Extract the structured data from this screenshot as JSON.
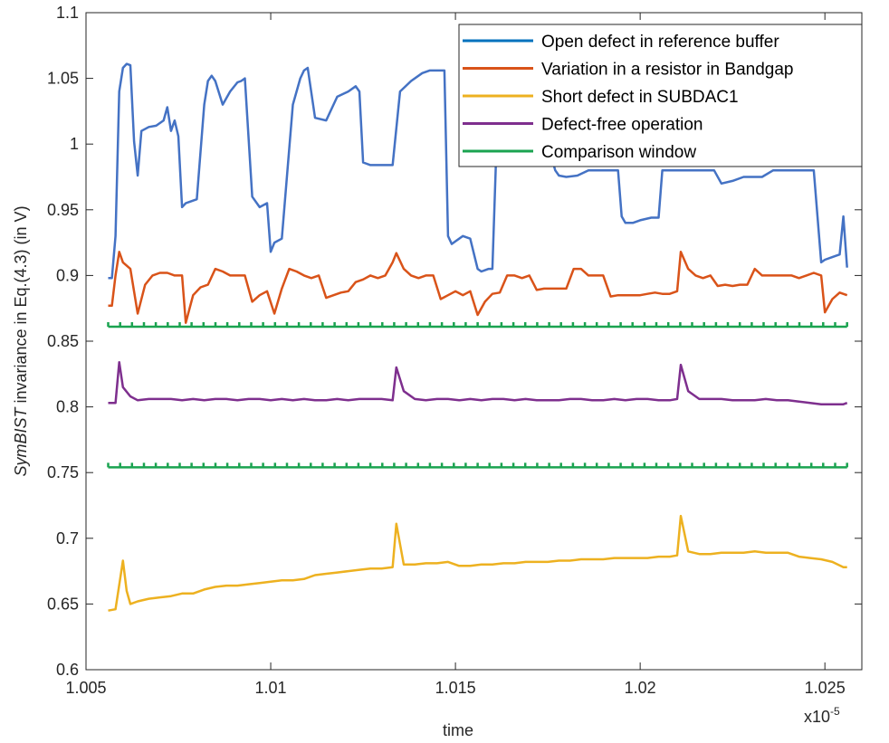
{
  "chart_data": {
    "type": "line",
    "title": "",
    "xlabel": "time",
    "ylabel_italic": "SymBIST",
    "ylabel_rest": " invariance in Eq.(4.3) (in V)",
    "x_exponent_label": "x10",
    "x_exponent_sup": "-5",
    "xlim": [
      1.005,
      1.026
    ],
    "ylim": [
      0.6,
      1.1
    ],
    "xticks": [
      1.005,
      1.01,
      1.015,
      1.02,
      1.025
    ],
    "xtick_labels": [
      "1.005",
      "1.01",
      "1.015",
      "1.02",
      "1.025"
    ],
    "yticks": [
      0.6,
      0.65,
      0.7,
      0.75,
      0.8,
      0.85,
      0.9,
      0.95,
      1.0,
      1.05,
      1.1
    ],
    "ytick_labels": [
      "0.6",
      "0.65",
      "0.7",
      "0.75",
      "0.8",
      "0.85",
      "0.9",
      "0.95",
      "1",
      "1.05",
      "1.1"
    ],
    "legend_position": "top-right",
    "series": [
      {
        "name": "Open defect in reference buffer",
        "color": "#4472C4",
        "legend_color": "#0072BD",
        "x": [
          1.0056,
          1.0057,
          1.0058,
          1.0059,
          1.006,
          1.0061,
          1.0062,
          1.0063,
          1.0064,
          1.0065,
          1.0067,
          1.0069,
          1.0071,
          1.0072,
          1.0073,
          1.0074,
          1.0075,
          1.0076,
          1.0077,
          1.0078,
          1.008,
          1.0082,
          1.0083,
          1.0084,
          1.0085,
          1.0087,
          1.0089,
          1.0091,
          1.0092,
          1.0093,
          1.0095,
          1.0097,
          1.0099,
          1.01,
          1.0101,
          1.0103,
          1.0106,
          1.0108,
          1.0109,
          1.011,
          1.0112,
          1.0115,
          1.0118,
          1.0121,
          1.0123,
          1.0124,
          1.0125,
          1.0127,
          1.013,
          1.0133,
          1.0135,
          1.0138,
          1.0141,
          1.0143,
          1.0145,
          1.0147,
          1.0148,
          1.0149,
          1.015,
          1.0152,
          1.0154,
          1.0156,
          1.0157,
          1.0158,
          1.0159,
          1.016,
          1.0161,
          1.0163,
          1.0166,
          1.0169,
          1.0172,
          1.0175,
          1.0177,
          1.0178,
          1.018,
          1.0183,
          1.0186,
          1.0188,
          1.019,
          1.0192,
          1.0194,
          1.0195,
          1.0196,
          1.0198,
          1.02,
          1.0203,
          1.0205,
          1.0206,
          1.0207,
          1.0209,
          1.0212,
          1.0215,
          1.0218,
          1.022,
          1.0222,
          1.0225,
          1.0228,
          1.023,
          1.0233,
          1.0236,
          1.0239,
          1.0242,
          1.0245,
          1.0247,
          1.0249,
          1.025,
          1.0252,
          1.0254,
          1.0255,
          1.0256
        ],
        "y": [
          0.898,
          0.898,
          0.93,
          1.04,
          1.058,
          1.061,
          1.06,
          1.002,
          0.976,
          1.01,
          1.013,
          1.014,
          1.018,
          1.028,
          1.01,
          1.018,
          1.006,
          0.952,
          0.955,
          0.956,
          0.958,
          1.03,
          1.048,
          1.052,
          1.048,
          1.03,
          1.04,
          1.047,
          1.048,
          1.05,
          0.96,
          0.952,
          0.955,
          0.918,
          0.925,
          0.928,
          1.03,
          1.05,
          1.056,
          1.058,
          1.02,
          1.018,
          1.036,
          1.04,
          1.044,
          1.04,
          0.986,
          0.984,
          0.984,
          0.984,
          1.04,
          1.048,
          1.054,
          1.056,
          1.056,
          1.056,
          0.93,
          0.924,
          0.926,
          0.93,
          0.928,
          0.905,
          0.903,
          0.904,
          0.905,
          0.905,
          0.99,
          1.0,
          1.0,
          1.0,
          1.0,
          1.0,
          0.98,
          0.976,
          0.975,
          0.976,
          0.98,
          0.98,
          0.98,
          0.98,
          0.98,
          0.945,
          0.94,
          0.94,
          0.942,
          0.944,
          0.944,
          0.98,
          0.98,
          0.98,
          0.98,
          0.98,
          0.98,
          0.98,
          0.97,
          0.972,
          0.975,
          0.975,
          0.975,
          0.98,
          0.98,
          0.98,
          0.98,
          0.98,
          0.91,
          0.912,
          0.914,
          0.916,
          0.945,
          0.906
        ]
      },
      {
        "name": "Variation in a resistor in Bandgap",
        "color": "#D95319",
        "x": [
          1.0056,
          1.0057,
          1.0058,
          1.0059,
          1.006,
          1.0062,
          1.0064,
          1.0066,
          1.0068,
          1.007,
          1.0072,
          1.0074,
          1.0076,
          1.0077,
          1.0079,
          1.0081,
          1.0083,
          1.0085,
          1.0087,
          1.0089,
          1.0091,
          1.0093,
          1.0095,
          1.0097,
          1.0099,
          1.0101,
          1.0103,
          1.0105,
          1.0107,
          1.0109,
          1.0111,
          1.0113,
          1.0115,
          1.0117,
          1.0119,
          1.0121,
          1.0123,
          1.0125,
          1.0127,
          1.0129,
          1.0131,
          1.0133,
          1.0134,
          1.0136,
          1.0138,
          1.014,
          1.0142,
          1.0144,
          1.0146,
          1.0148,
          1.015,
          1.0152,
          1.0154,
          1.0156,
          1.0158,
          1.016,
          1.0162,
          1.0164,
          1.0166,
          1.0168,
          1.017,
          1.0172,
          1.0174,
          1.0176,
          1.0178,
          1.018,
          1.0182,
          1.0184,
          1.0186,
          1.0188,
          1.019,
          1.0192,
          1.0194,
          1.0196,
          1.0198,
          1.02,
          1.0202,
          1.0204,
          1.0206,
          1.0208,
          1.021,
          1.0211,
          1.0213,
          1.0215,
          1.0217,
          1.0219,
          1.0221,
          1.0223,
          1.0225,
          1.0227,
          1.0229,
          1.0231,
          1.0233,
          1.0235,
          1.0237,
          1.0239,
          1.0241,
          1.0243,
          1.0245,
          1.0247,
          1.0249,
          1.025,
          1.0252,
          1.0254,
          1.0256
        ],
        "y": [
          0.877,
          0.877,
          0.9,
          0.918,
          0.91,
          0.905,
          0.871,
          0.893,
          0.9,
          0.902,
          0.902,
          0.9,
          0.9,
          0.864,
          0.885,
          0.891,
          0.893,
          0.905,
          0.903,
          0.9,
          0.9,
          0.9,
          0.88,
          0.885,
          0.888,
          0.871,
          0.89,
          0.905,
          0.903,
          0.9,
          0.898,
          0.9,
          0.883,
          0.885,
          0.887,
          0.888,
          0.895,
          0.897,
          0.9,
          0.898,
          0.9,
          0.91,
          0.917,
          0.905,
          0.9,
          0.898,
          0.9,
          0.9,
          0.882,
          0.885,
          0.888,
          0.885,
          0.888,
          0.87,
          0.88,
          0.886,
          0.887,
          0.9,
          0.9,
          0.898,
          0.9,
          0.889,
          0.89,
          0.89,
          0.89,
          0.89,
          0.905,
          0.905,
          0.9,
          0.9,
          0.9,
          0.884,
          0.885,
          0.885,
          0.885,
          0.885,
          0.886,
          0.887,
          0.886,
          0.886,
          0.888,
          0.918,
          0.905,
          0.9,
          0.898,
          0.9,
          0.892,
          0.893,
          0.892,
          0.893,
          0.893,
          0.905,
          0.9,
          0.9,
          0.9,
          0.9,
          0.9,
          0.898,
          0.9,
          0.902,
          0.9,
          0.872,
          0.882,
          0.887,
          0.885
        ]
      },
      {
        "name": "Short defect in SUBDAC1",
        "color": "#EDB120",
        "x": [
          1.0056,
          1.0058,
          1.006,
          1.0061,
          1.0062,
          1.0064,
          1.0067,
          1.007,
          1.0073,
          1.0076,
          1.0079,
          1.0082,
          1.0085,
          1.0088,
          1.0091,
          1.0094,
          1.0097,
          1.01,
          1.0103,
          1.0106,
          1.0109,
          1.0112,
          1.0115,
          1.0118,
          1.0121,
          1.0124,
          1.0127,
          1.013,
          1.0133,
          1.0134,
          1.0136,
          1.0139,
          1.0142,
          1.0145,
          1.0148,
          1.0151,
          1.0154,
          1.0157,
          1.016,
          1.0163,
          1.0166,
          1.0169,
          1.0172,
          1.0175,
          1.0178,
          1.0181,
          1.0184,
          1.0187,
          1.019,
          1.0193,
          1.0196,
          1.0199,
          1.0202,
          1.0205,
          1.0208,
          1.021,
          1.0211,
          1.0213,
          1.0216,
          1.0219,
          1.0222,
          1.0225,
          1.0228,
          1.0231,
          1.0234,
          1.0237,
          1.024,
          1.0243,
          1.0246,
          1.0249,
          1.0252,
          1.0255,
          1.0256
        ],
        "y": [
          0.645,
          0.646,
          0.683,
          0.66,
          0.65,
          0.652,
          0.654,
          0.655,
          0.656,
          0.658,
          0.658,
          0.661,
          0.663,
          0.664,
          0.664,
          0.665,
          0.666,
          0.667,
          0.668,
          0.668,
          0.669,
          0.672,
          0.673,
          0.674,
          0.675,
          0.676,
          0.677,
          0.677,
          0.678,
          0.711,
          0.68,
          0.68,
          0.681,
          0.681,
          0.682,
          0.679,
          0.679,
          0.68,
          0.68,
          0.681,
          0.681,
          0.682,
          0.682,
          0.682,
          0.683,
          0.683,
          0.684,
          0.684,
          0.684,
          0.685,
          0.685,
          0.685,
          0.685,
          0.686,
          0.686,
          0.687,
          0.717,
          0.69,
          0.688,
          0.688,
          0.689,
          0.689,
          0.689,
          0.69,
          0.689,
          0.689,
          0.689,
          0.686,
          0.685,
          0.684,
          0.682,
          0.678,
          0.678
        ]
      },
      {
        "name": "Defect-free operation",
        "color": "#7E2F8E",
        "x": [
          1.0056,
          1.0058,
          1.0059,
          1.006,
          1.0062,
          1.0064,
          1.0067,
          1.007,
          1.0073,
          1.0076,
          1.0079,
          1.0082,
          1.0085,
          1.0088,
          1.0091,
          1.0094,
          1.0097,
          1.01,
          1.0103,
          1.0106,
          1.0109,
          1.0112,
          1.0115,
          1.0118,
          1.0121,
          1.0124,
          1.0127,
          1.013,
          1.0133,
          1.0134,
          1.0136,
          1.0139,
          1.0142,
          1.0145,
          1.0148,
          1.0151,
          1.0154,
          1.0157,
          1.016,
          1.0163,
          1.0166,
          1.0169,
          1.0172,
          1.0175,
          1.0178,
          1.0181,
          1.0184,
          1.0187,
          1.019,
          1.0193,
          1.0196,
          1.0199,
          1.0202,
          1.0205,
          1.0208,
          1.021,
          1.0211,
          1.0213,
          1.0216,
          1.0219,
          1.0222,
          1.0225,
          1.0228,
          1.0231,
          1.0234,
          1.0237,
          1.024,
          1.0243,
          1.0246,
          1.0249,
          1.0252,
          1.0255,
          1.0256
        ],
        "y": [
          0.803,
          0.803,
          0.834,
          0.815,
          0.808,
          0.805,
          0.806,
          0.806,
          0.806,
          0.805,
          0.806,
          0.805,
          0.806,
          0.806,
          0.805,
          0.806,
          0.806,
          0.805,
          0.806,
          0.805,
          0.806,
          0.805,
          0.805,
          0.806,
          0.805,
          0.806,
          0.806,
          0.806,
          0.805,
          0.83,
          0.812,
          0.806,
          0.805,
          0.806,
          0.806,
          0.805,
          0.806,
          0.805,
          0.806,
          0.806,
          0.805,
          0.806,
          0.805,
          0.805,
          0.805,
          0.806,
          0.806,
          0.805,
          0.805,
          0.806,
          0.805,
          0.806,
          0.806,
          0.805,
          0.805,
          0.806,
          0.832,
          0.812,
          0.806,
          0.806,
          0.806,
          0.805,
          0.805,
          0.805,
          0.806,
          0.805,
          0.805,
          0.804,
          0.803,
          0.802,
          0.802,
          0.802,
          0.803
        ]
      },
      {
        "name": "Comparison window",
        "color": "#1AA350",
        "upper": 0.861,
        "lower": 0.754,
        "x_range": [
          1.0056,
          1.0256
        ]
      }
    ]
  }
}
